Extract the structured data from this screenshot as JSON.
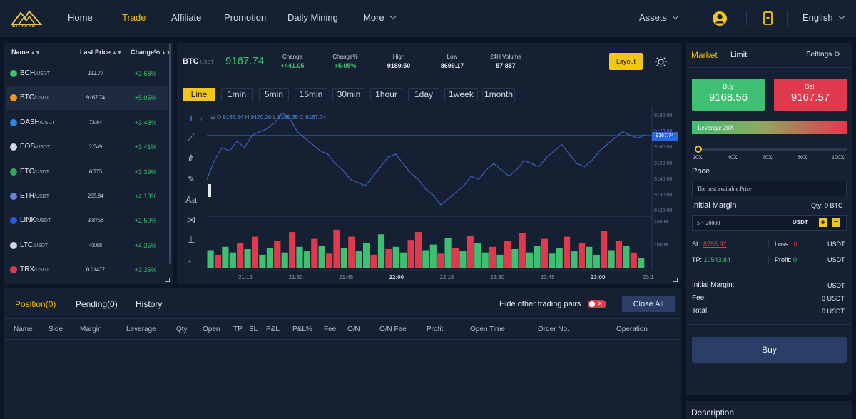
{
  "nav": {
    "logo_text": "BITYARD",
    "items": [
      "Home",
      "Trade",
      "Affiliate",
      "Promotion",
      "Daily Mining",
      "More"
    ],
    "assets": "Assets",
    "language": "English"
  },
  "market_list": {
    "headers": [
      "Name",
      "Last Price",
      "Change%"
    ],
    "rows": [
      {
        "coin": "BCH",
        "quote": "/USDT",
        "price": "232.77",
        "change": "+3.68%",
        "color": "#3fbf72"
      },
      {
        "coin": "BTC",
        "quote": "/USDT",
        "price": "9167.74",
        "change": "+5.05%",
        "color": "#f7931a"
      },
      {
        "coin": "DASH",
        "quote": "/USDT",
        "price": "73.84",
        "change": "+3.48%",
        "color": "#2a8be0"
      },
      {
        "coin": "EOS",
        "quote": "/USDT",
        "price": "2.549",
        "change": "+3.41%",
        "color": "#cfd6e0"
      },
      {
        "coin": "ETC",
        "quote": "/USDT",
        "price": "6.775",
        "change": "+3.39%",
        "color": "#2fa85a"
      },
      {
        "coin": "ETH",
        "quote": "/USDT",
        "price": "205.84",
        "change": "+4.13%",
        "color": "#6a7fd8"
      },
      {
        "coin": "LINK",
        "quote": "/USDT",
        "price": "3.8758",
        "change": "+2.50%",
        "color": "#2a5ad8"
      },
      {
        "coin": "LTC",
        "quote": "/USDT",
        "price": "43.68",
        "change": "+4.35%",
        "color": "#cfd6e0"
      },
      {
        "coin": "TRX",
        "quote": "/USDT",
        "price": "0.01477",
        "change": "+3.36%",
        "color": "#e0394e"
      }
    ]
  },
  "ticker": {
    "symbol": "BTC",
    "quote": "USDT",
    "last": "9167.74",
    "stats": [
      {
        "label": "Change",
        "value": "+441.05"
      },
      {
        "label": "Change%",
        "value": "+5.05%"
      },
      {
        "label": "High",
        "value": "9189.50"
      },
      {
        "label": "Low",
        "value": "8699.17"
      },
      {
        "label": "24H Volume",
        "value": "57 857"
      }
    ],
    "layout_button": "Layout"
  },
  "timeframes": [
    "Line",
    "1min",
    "5min",
    "15min",
    "30min",
    "1hour",
    "1day",
    "1week",
    "1month"
  ],
  "ohlc": {
    "o": "O",
    "o_val": "9165.54",
    "h": "H",
    "h_val": "9170.30",
    "l": "L",
    "l_val": "9165.35",
    "c": "C",
    "c_val": "9167.74"
  },
  "chart_data": {
    "type": "line",
    "price_axis": [
      "9180.00",
      "9170.00",
      "9160.00",
      "9150.00",
      "9140.00",
      "9130.00",
      "9120.00"
    ],
    "price_tag": "9167.74",
    "volume_axis": [
      "200 M",
      "100 M"
    ],
    "x_labels": [
      "21:15",
      "21:30",
      "21:45",
      "22:00",
      "22:15",
      "22:30",
      "22:45",
      "23:00",
      "23:1"
    ],
    "x_bold": [
      false,
      false,
      false,
      true,
      false,
      false,
      false,
      true,
      false
    ],
    "price_series": [
      9140,
      9152,
      9160,
      9158,
      9164,
      9160,
      9168,
      9170,
      9172,
      9176,
      9182,
      9178,
      9170,
      9166,
      9162,
      9158,
      9156,
      9150,
      9146,
      9140,
      9138,
      9136,
      9142,
      9148,
      9154,
      9156,
      9150,
      9144,
      9140,
      9134,
      9130,
      9124,
      9128,
      9132,
      9136,
      9142,
      9140,
      9146,
      9150,
      9146,
      9142,
      9146,
      9152,
      9150,
      9148,
      9154,
      9158,
      9162,
      9156,
      9150,
      9148,
      9152,
      9158,
      9162,
      9166,
      9170,
      9168,
      9166,
      9168
    ],
    "volume_series": [
      80,
      60,
      95,
      70,
      110,
      85,
      140,
      60,
      90,
      120,
      70,
      160,
      95,
      75,
      130,
      100,
      65,
      170,
      90,
      140,
      75,
      110,
      60,
      150,
      85,
      95,
      70,
      125,
      160,
      80,
      105,
      65,
      135,
      90,
      75,
      145,
      110,
      70,
      95,
      60,
      120,
      85,
      155,
      70,
      100,
      130,
      65,
      90,
      140,
      75,
      110,
      95,
      60,
      165,
      80,
      120,
      100,
      70,
      45
    ],
    "volume_up": [
      true,
      false,
      true,
      true,
      false,
      true,
      false,
      true,
      true,
      false,
      true,
      false,
      true,
      true,
      false,
      true,
      false,
      false,
      true,
      false,
      true,
      true,
      false,
      true,
      false,
      true,
      true,
      false,
      false,
      true,
      true,
      false,
      true,
      false,
      true,
      false,
      true,
      true,
      false,
      true,
      false,
      true,
      false,
      true,
      true,
      false,
      true,
      true,
      false,
      true,
      false,
      true,
      true,
      false,
      true,
      false,
      true,
      false,
      true
    ]
  },
  "positions": {
    "tabs": [
      "Position(0)",
      "Pending(0)",
      "History"
    ],
    "hide_toggle": "Hide other trading pairs",
    "close_all": "Close All",
    "columns": [
      "Name",
      "Side",
      "Margin",
      "Leverage",
      "Qty",
      "Open",
      "TP",
      "SL",
      "P&L",
      "P&L%",
      "Fee",
      "O/N",
      "O/N Fee",
      "Profit",
      "Open Time",
      "Order No.",
      "Operation"
    ]
  },
  "order_panel": {
    "tabs": [
      "Market",
      "Limit"
    ],
    "settings": "Settings",
    "buy_label": "Buy",
    "buy_price": "9168.56",
    "sell_label": "Sell",
    "sell_price": "9167.57",
    "leverage_label": "Leverage 20X",
    "leverage_ticks": [
      "20X",
      "40X",
      "60X",
      "80X",
      "100X"
    ],
    "leverage_value": 20,
    "price_label": "Price",
    "price_placeholder": "The best available Price",
    "initial_margin_label": "Initial Margin",
    "qty_label": "Qty: 0 BTC",
    "margin_placeholder": "5 ~ 20000",
    "margin_unit": "USDT",
    "sl_label": "SL:",
    "sl_value": "8755.97",
    "loss_label": "Loss :",
    "loss_value": "0",
    "sl_unit": "USDT",
    "tp_label": "TP:",
    "tp_value": "10543.84",
    "profit_label": "Profit:",
    "profit_value": "0",
    "tp_unit": "USDT",
    "summary": [
      {
        "label": "Initial Margin:",
        "value": "USDT"
      },
      {
        "label": "Fee:",
        "value": "0 USDT"
      },
      {
        "label": "Total:",
        "value": "0 USDT"
      }
    ],
    "buy_button": "Buy",
    "description": "Description"
  }
}
